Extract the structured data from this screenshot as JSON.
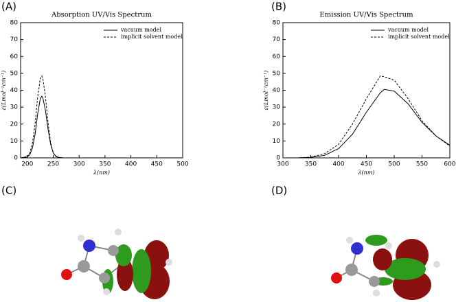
{
  "chart_data": [
    {
      "type": "line",
      "panel": "(A)",
      "title": "Absorption UV/Vis Spectrum",
      "x_label": "λ(nm)",
      "y_label": "ε(Lmol⁻¹cm⁻¹)",
      "x": [
        187,
        200,
        205,
        210,
        215,
        220,
        225,
        228,
        230,
        235,
        240,
        245,
        250,
        255,
        260,
        270,
        280,
        300,
        500
      ],
      "series": [
        {
          "name": "vacuum model",
          "color": "#000000",
          "dash": false,
          "values": [
            0,
            0.5,
            2,
            6,
            14,
            26,
            35,
            36.5,
            35.5,
            28,
            17,
            8,
            3,
            1,
            0.3,
            0,
            0,
            0,
            0
          ]
        },
        {
          "name": "implicit solvent model",
          "color": "#000000",
          "dash": true,
          "values": [
            0,
            0.8,
            3,
            9,
            20,
            36,
            47,
            48.5,
            47,
            36,
            21,
            9,
            3,
            0.8,
            0.2,
            0,
            0,
            0,
            0
          ]
        }
      ],
      "xlim": [
        187,
        500
      ],
      "xticks": [
        200,
        250,
        300,
        350,
        400,
        450,
        500
      ],
      "ylim": [
        0,
        80
      ],
      "yticks": [
        0,
        10,
        20,
        30,
        40,
        50,
        60,
        70,
        80
      ],
      "legend": "upper right"
    },
    {
      "type": "line",
      "panel": "(B)",
      "title": "Emission UV/Vis Spectrum",
      "x_label": "λ(nm)",
      "y_label": "ε(Lmol⁻¹cm⁻¹)",
      "x": [
        300,
        325,
        350,
        375,
        400,
        425,
        450,
        475,
        482,
        500,
        525,
        550,
        575,
        600
      ],
      "series": [
        {
          "name": "vacuum model",
          "color": "#000000",
          "dash": false,
          "values": [
            0,
            0,
            0.3,
            1.5,
            5.5,
            14,
            27,
            38.5,
            40.5,
            39.5,
            32,
            21,
            13,
            7.5
          ]
        },
        {
          "name": "implicit solvent model",
          "color": "#000000",
          "dash": true,
          "values": [
            0,
            0,
            0.4,
            2.5,
            8,
            20,
            35,
            48.5,
            48,
            46,
            35,
            22,
            13,
            7
          ]
        }
      ],
      "xlim": [
        300,
        600
      ],
      "xticks": [
        300,
        350,
        400,
        450,
        500,
        550,
        600
      ],
      "ylim": [
        0,
        80
      ],
      "yticks": [
        0,
        10,
        20,
        30,
        40,
        50,
        60,
        70,
        80
      ],
      "legend": "upper right"
    }
  ],
  "images": [
    {
      "panel": "(C)"
    },
    {
      "panel": "(D)"
    }
  ]
}
